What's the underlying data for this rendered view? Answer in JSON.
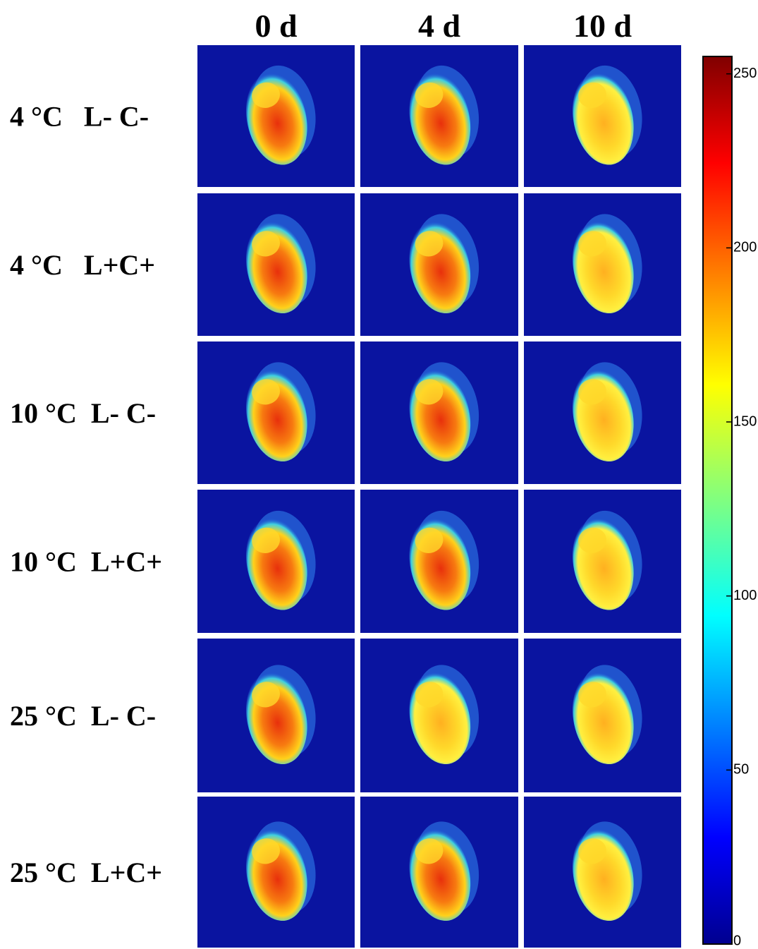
{
  "columns": [
    "0 d",
    "4 d",
    "10 d"
  ],
  "rows": [
    "4 °C   L- C-",
    "4 °C   L+C+",
    "10 °C  L- C-",
    "10 °C  L+C+",
    "25 °C  L- C-",
    "25 °C  L+C+"
  ],
  "colorbar": {
    "lim": [
      0,
      255
    ],
    "ticks": [
      0,
      50,
      100,
      150,
      200,
      250
    ]
  }
}
